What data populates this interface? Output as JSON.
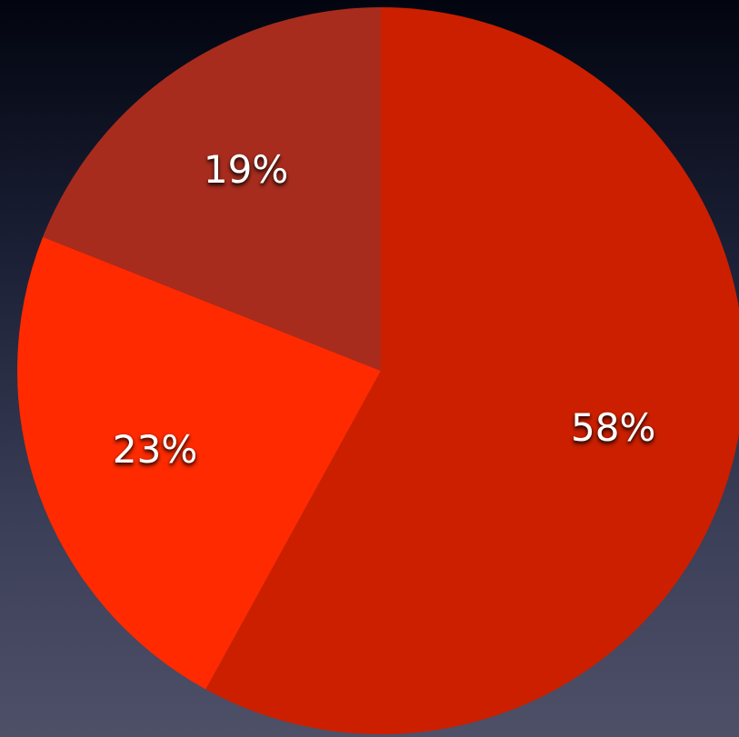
{
  "chart_data": {
    "type": "pie",
    "start_angle_deg": 0,
    "direction": "clockwise",
    "slices": [
      {
        "label": "58%",
        "value": 58,
        "color": "#cc1f00"
      },
      {
        "label": "23%",
        "value": 23,
        "color": "#ff2a00"
      },
      {
        "label": "19%",
        "value": 19,
        "color": "#a82c1e"
      }
    ]
  }
}
